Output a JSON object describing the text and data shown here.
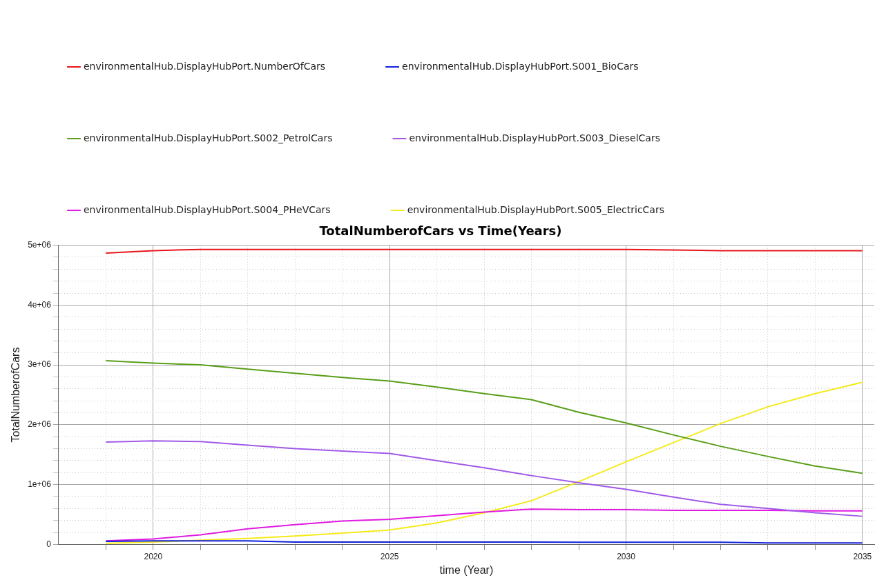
{
  "chart_data": {
    "type": "line",
    "title": "TotalNumberofCars vs Time(Years)",
    "xlabel": "time (Year)",
    "ylabel": "TotalNumberofCars",
    "x": [
      2019,
      2020,
      2021,
      2022,
      2023,
      2024,
      2025,
      2026,
      2027,
      2028,
      2029,
      2030,
      2031,
      2032,
      2033,
      2034,
      2035
    ],
    "series": [
      {
        "name": "environmentalHub.DisplayHubPort.NumberOfCars",
        "color": "#e8141b",
        "values": [
          4870000,
          4910000,
          4930000,
          4930000,
          4930000,
          4930000,
          4930000,
          4930000,
          4930000,
          4930000,
          4930000,
          4930000,
          4920000,
          4910000,
          4910000,
          4910000,
          4910000
        ]
      },
      {
        "name": "environmentalHub.DisplayHubPort.S001_BioCars",
        "color": "#1020d8",
        "values": [
          50000,
          60000,
          60000,
          60000,
          40000,
          40000,
          40000,
          40000,
          40000,
          40000,
          35000,
          35000,
          35000,
          35000,
          25000,
          25000,
          25000
        ]
      },
      {
        "name": "environmentalHub.DisplayHubPort.S002_PetrolCars",
        "color": "#5a9e1a",
        "values": [
          3070000,
          3030000,
          3000000,
          2930000,
          2860000,
          2790000,
          2730000,
          2630000,
          2520000,
          2420000,
          2210000,
          2030000,
          1830000,
          1640000,
          1470000,
          1310000,
          1190000
        ]
      },
      {
        "name": "environmentalHub.DisplayHubPort.S003_DieselCars",
        "color": "#a05ae8",
        "values": [
          1710000,
          1730000,
          1720000,
          1660000,
          1600000,
          1560000,
          1520000,
          1400000,
          1280000,
          1150000,
          1030000,
          920000,
          790000,
          670000,
          600000,
          530000,
          470000
        ]
      },
      {
        "name": "environmentalHub.DisplayHubPort.S004_PHeVCars",
        "color": "#e01ae0",
        "values": [
          60000,
          90000,
          160000,
          260000,
          330000,
          390000,
          420000,
          480000,
          540000,
          590000,
          580000,
          580000,
          570000,
          570000,
          570000,
          560000,
          560000
        ]
      },
      {
        "name": "environmentalHub.DisplayHubPort.S005_ElectricCars",
        "color": "#f5ea1a",
        "values": [
          20000,
          40000,
          70000,
          100000,
          140000,
          190000,
          240000,
          360000,
          530000,
          730000,
          1050000,
          1380000,
          1700000,
          2020000,
          2300000,
          2520000,
          2710000
        ]
      }
    ],
    "xlim": [
      2018,
      2035.25
    ],
    "xticks": [
      {
        "value": 2019,
        "label": null
      },
      2020,
      {
        "value": 2021,
        "label": null
      },
      {
        "value": 2022,
        "label": null
      },
      {
        "value": 2023,
        "label": null
      },
      {
        "value": 2024,
        "label": null
      },
      2025,
      {
        "value": 2026,
        "label": null
      },
      {
        "value": 2027,
        "label": null
      },
      {
        "value": 2028,
        "label": null
      },
      {
        "value": 2029,
        "label": null
      },
      2030,
      {
        "value": 2031,
        "label": null
      },
      {
        "value": 2032,
        "label": null
      },
      {
        "value": 2033,
        "label": null
      },
      {
        "value": 2034,
        "label": null
      },
      2035
    ],
    "ylim": [
      0,
      5000000
    ],
    "yticks": [
      {
        "value": 0,
        "label": "0"
      },
      {
        "value": 200000,
        "label": null
      },
      {
        "value": 400000,
        "label": null
      },
      {
        "value": 600000,
        "label": null
      },
      {
        "value": 800000,
        "label": null
      },
      {
        "value": 1000000,
        "label": "1e+06"
      },
      {
        "value": 1200000,
        "label": null
      },
      {
        "value": 1400000,
        "label": null
      },
      {
        "value": 1600000,
        "label": null
      },
      {
        "value": 1800000,
        "label": null
      },
      {
        "value": 2000000,
        "label": "2e+06"
      },
      {
        "value": 2200000,
        "label": null
      },
      {
        "value": 2400000,
        "label": null
      },
      {
        "value": 2600000,
        "label": null
      },
      {
        "value": 2800000,
        "label": null
      },
      {
        "value": 3000000,
        "label": "3e+06"
      },
      {
        "value": 3200000,
        "label": null
      },
      {
        "value": 3400000,
        "label": null
      },
      {
        "value": 3600000,
        "label": null
      },
      {
        "value": 3800000,
        "label": null
      },
      {
        "value": 4000000,
        "label": "4e+06"
      },
      {
        "value": 4200000,
        "label": null
      },
      {
        "value": 4400000,
        "label": null
      },
      {
        "value": 4600000,
        "label": null
      },
      {
        "value": 4800000,
        "label": null
      },
      {
        "value": 5000000,
        "label": "5e+06"
      }
    ],
    "grid": true,
    "legend": "top left",
    "marker": "none",
    "line_style": "solid"
  }
}
